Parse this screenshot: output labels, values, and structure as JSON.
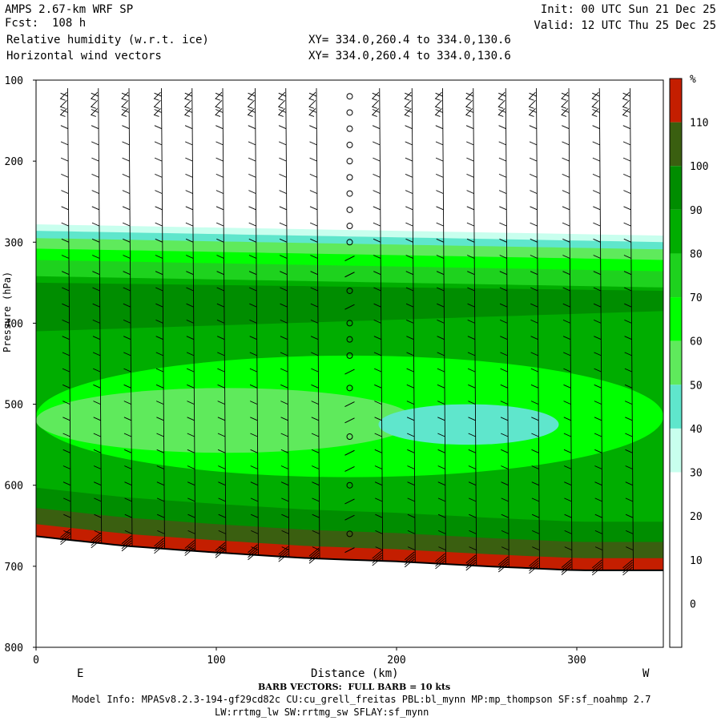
{
  "header": {
    "model": "AMPS 2.67-km WRF SP",
    "forecast": "Fcst:  108 h",
    "init": "Init: 00 UTC Sun 21 Dec 25",
    "valid": "Valid: 12 UTC Thu 25 Dec 25",
    "field1": "Relative humidity (w.r.t. ice)",
    "field2": "Horizontal wind vectors",
    "xy1": "XY= 334.0,260.4 to 334.0,130.6",
    "xy2": "XY= 334.0,260.4 to 334.0,130.6"
  },
  "footer": {
    "barb_note": "BARB VECTORS:  FULL BARB = 10 kts",
    "model_info": "Model Info: MPASv8.2.3-194-gf29cd82c CU:cu_grell_freitas PBL:bl_mynn MP:mp_thompson SF:sf_noahmp 2.7",
    "model_info2": "LW:rrtmg_lw SW:rrtmg_sw SFLAY:sf_mynn"
  },
  "chart_data": {
    "type": "heatmap",
    "title": "Relative humidity (w.r.t. ice)",
    "xlabel": "Distance (km)",
    "ylabel": "Pressure (hPa)",
    "x_end_labels": [
      "E",
      "W"
    ],
    "xlim": [
      0,
      348
    ],
    "ylim": [
      800,
      100
    ],
    "xticks": [
      0,
      100,
      200,
      300
    ],
    "yticks": [
      100,
      200,
      300,
      400,
      500,
      600,
      700,
      800
    ],
    "colorbar": {
      "unit": "%",
      "levels": [
        0,
        10,
        20,
        30,
        40,
        50,
        60,
        70,
        80,
        90,
        100,
        110
      ],
      "colors": [
        "#ffffff",
        "#ffffff",
        "#ffffff",
        "#ffffff",
        "#c8ffee",
        "#5fe6cc",
        "#5fea5c",
        "#00ff00",
        "#1ed21e",
        "#00ad00",
        "#008d00",
        "#3a5f10",
        "#c41e00"
      ]
    },
    "rh_bands": [
      {
        "value": 30,
        "top_hpa": 288
      },
      {
        "value": 40,
        "top_hpa": 296
      },
      {
        "value": 50,
        "top_hpa": 305
      },
      {
        "value": 60,
        "top_hpa": 318
      },
      {
        "value": 70,
        "top_hpa": 332
      },
      {
        "value": 80,
        "top_hpa": 352
      }
    ],
    "moist_layer": {
      "value": 90,
      "top_hpa": 360,
      "bottom_hpa": 410
    },
    "dry_patches": [
      {
        "value": 60,
        "x_km": [
          0,
          348
        ],
        "p_hpa": [
          440,
          590
        ]
      },
      {
        "value": 50,
        "x_km": [
          0,
          210
        ],
        "p_hpa": [
          480,
          560
        ]
      },
      {
        "value": 40,
        "x_km": [
          190,
          290
        ],
        "p_hpa": [
          500,
          550
        ]
      }
    ],
    "terrain_hpa": [
      {
        "x": 0,
        "p": 663
      },
      {
        "x": 50,
        "p": 675
      },
      {
        "x": 100,
        "p": 683
      },
      {
        "x": 150,
        "p": 690
      },
      {
        "x": 200,
        "p": 694
      },
      {
        "x": 250,
        "p": 700
      },
      {
        "x": 300,
        "p": 705
      },
      {
        "x": 348,
        "p": 705
      }
    ],
    "barb_columns_km": [
      18,
      35,
      52,
      70,
      87,
      104,
      122,
      139,
      156,
      174,
      191,
      209,
      226,
      243,
      261,
      278,
      296,
      313,
      330
    ],
    "barb_levels_hpa": [
      120,
      140,
      160,
      180,
      200,
      220,
      240,
      260,
      280,
      300,
      320,
      340,
      360,
      380,
      400,
      420,
      440,
      460,
      480,
      500,
      520,
      540,
      560,
      580,
      600,
      620,
      640,
      660,
      680
    ]
  }
}
